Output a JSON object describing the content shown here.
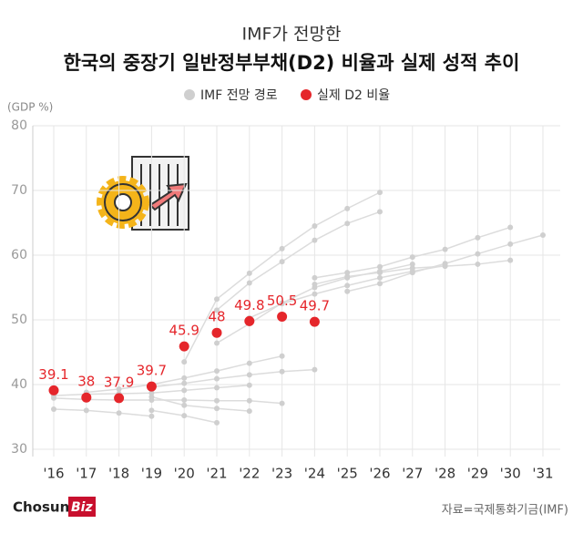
{
  "chart_data": {
    "type": "line",
    "subtitle": "IMF가 전망한",
    "title": "한국의 중장기 일반정부부채(D2) 비율과 실제 성적 추이",
    "y_label": "(GDP %)",
    "source": "자료=국제통화기금(IMF)",
    "brand": [
      "Chosun",
      "Biz"
    ],
    "categories": [
      "'16",
      "'17",
      "'18",
      "'19",
      "'20",
      "'21",
      "'22",
      "'23",
      "'24",
      "'25",
      "'26",
      "'27",
      "'28",
      "'29",
      "'30",
      "'31"
    ],
    "ylim": [
      30,
      80
    ],
    "yticks": [
      30,
      40,
      50,
      60,
      70,
      80
    ],
    "grid": true,
    "forecast_legend": {
      "name": "IMF 전망 경로",
      "color": "#cfcfcf"
    },
    "forecasts": [
      {
        "values": [
          null,
          null,
          null,
          null,
          43.5,
          53.2,
          57.2,
          61,
          64.5,
          67.2,
          69.7,
          null,
          null,
          null,
          null,
          null
        ]
      },
      {
        "values": [
          null,
          null,
          null,
          null,
          null,
          51.5,
          55.7,
          59,
          62.3,
          64.9,
          66.7,
          null,
          null,
          null,
          null,
          null
        ]
      },
      {
        "values": [
          null,
          null,
          null,
          null,
          null,
          null,
          null,
          null,
          56.5,
          57.3,
          58.2,
          59.7,
          60.9,
          62.7,
          64.3,
          null
        ]
      },
      {
        "values": [
          null,
          null,
          null,
          null,
          null,
          null,
          null,
          null,
          null,
          54.4,
          55.6,
          57.3,
          58.7,
          60.2,
          61.7,
          63.1
        ]
      },
      {
        "values": [
          null,
          null,
          null,
          null,
          null,
          null,
          null,
          null,
          55.5,
          56.7,
          57.3,
          58,
          58.3,
          58.6,
          59.2,
          null
        ]
      },
      {
        "values": [
          null,
          null,
          null,
          null,
          null,
          46.4,
          49.4,
          52.6,
          55,
          56.5,
          57.5,
          58.6,
          null,
          null,
          null,
          null
        ]
      },
      {
        "values": [
          null,
          null,
          null,
          null,
          null,
          null,
          50.3,
          52.5,
          54,
          55.3,
          56.5,
          57.5,
          58.4,
          null,
          null,
          null
        ]
      },
      {
        "values": [
          null,
          38.8,
          39.3,
          40,
          41,
          42.1,
          43.3,
          44.4,
          null,
          null,
          null,
          null,
          null,
          null,
          null,
          null
        ]
      },
      {
        "values": [
          null,
          null,
          null,
          39.6,
          40.2,
          40.9,
          41.5,
          42,
          42.3,
          null,
          null,
          null,
          null,
          null,
          null,
          null
        ]
      },
      {
        "values": [
          38.3,
          38.5,
          38.6,
          38.7,
          39.1,
          39.5,
          39.9,
          null,
          null,
          null,
          null,
          null,
          null,
          null,
          null,
          null
        ]
      },
      {
        "values": [
          37.9,
          37.7,
          37.6,
          37.6,
          37.6,
          37.5,
          37.5,
          37.1,
          null,
          null,
          null,
          null,
          null,
          null,
          null,
          null
        ]
      },
      {
        "values": [
          null,
          null,
          null,
          38.1,
          36.8,
          36.3,
          35.9,
          null,
          null,
          null,
          null,
          null,
          null,
          null,
          null,
          null
        ]
      },
      {
        "values": [
          36.2,
          36,
          35.6,
          35.1,
          null,
          null,
          null,
          null,
          null,
          null,
          null,
          null,
          null,
          null,
          null,
          null
        ]
      },
      {
        "values": [
          null,
          null,
          null,
          36,
          35.2,
          34.1,
          null,
          null,
          null,
          null,
          null,
          null,
          null,
          null,
          null,
          null
        ]
      }
    ],
    "actual": {
      "name": "실제 D2 비율",
      "color": "#e5262b",
      "values": [
        39.1,
        38,
        37.9,
        39.7,
        45.9,
        48,
        49.8,
        50.5,
        49.7,
        null,
        null,
        null,
        null,
        null,
        null,
        null
      ]
    }
  }
}
